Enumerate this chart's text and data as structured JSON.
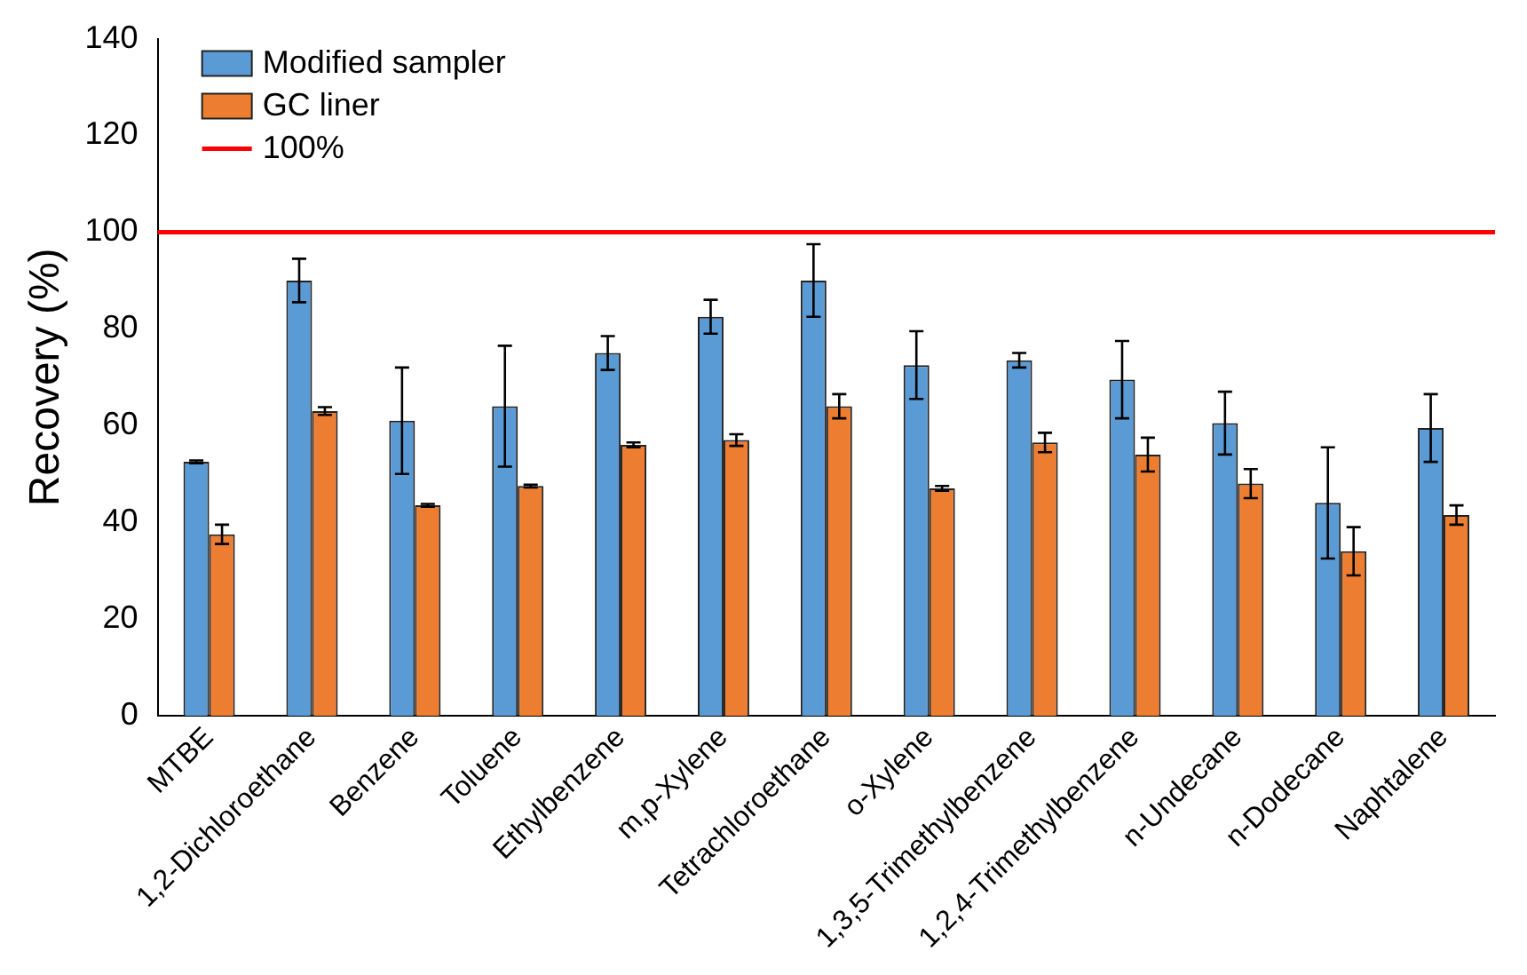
{
  "chart_data": {
    "type": "bar",
    "ylabel": "Recovery (%)",
    "categories": [
      "MTBE",
      "1,2-Dichloroethane",
      "Benzene",
      "Toluene",
      "Ethylbenzene",
      "m,p-Xylene",
      "Tetrachloroethane",
      "o-Xylene",
      "1,3,5-Trimethylbenzene",
      "1,2,4-Trimethylbenzene",
      "n-Undecane",
      "n-Dodecane",
      "Naphtalene"
    ],
    "series": [
      {
        "name": "Modified sampler",
        "color": "#5b9bd5",
        "values": [
          52.5,
          90,
          61,
          64,
          75,
          82.5,
          90,
          72.5,
          73.5,
          69.5,
          60.5,
          44,
          59.5
        ],
        "errors": [
          0.3,
          4.5,
          11,
          12.5,
          3.5,
          3.5,
          7.5,
          7,
          1.5,
          8,
          6.5,
          11.5,
          7
        ]
      },
      {
        "name": "GC liner",
        "color": "#ed7d31",
        "values": [
          37.5,
          63,
          43.5,
          47.5,
          56,
          57,
          64,
          47,
          56.5,
          54,
          48,
          34,
          41.5
        ],
        "errors": [
          2,
          0.8,
          0.3,
          0.3,
          0.5,
          1.2,
          2.5,
          0.5,
          2,
          3.5,
          3,
          5,
          2
        ]
      }
    ],
    "ref_lines": [
      {
        "axis": "y",
        "value": 100,
        "label": "100%",
        "color": "#ff0000"
      }
    ],
    "ylim": [
      0,
      140
    ],
    "yticks": [
      0,
      20,
      40,
      60,
      80,
      100,
      120,
      140
    ],
    "grid": false,
    "legend": "top left"
  }
}
